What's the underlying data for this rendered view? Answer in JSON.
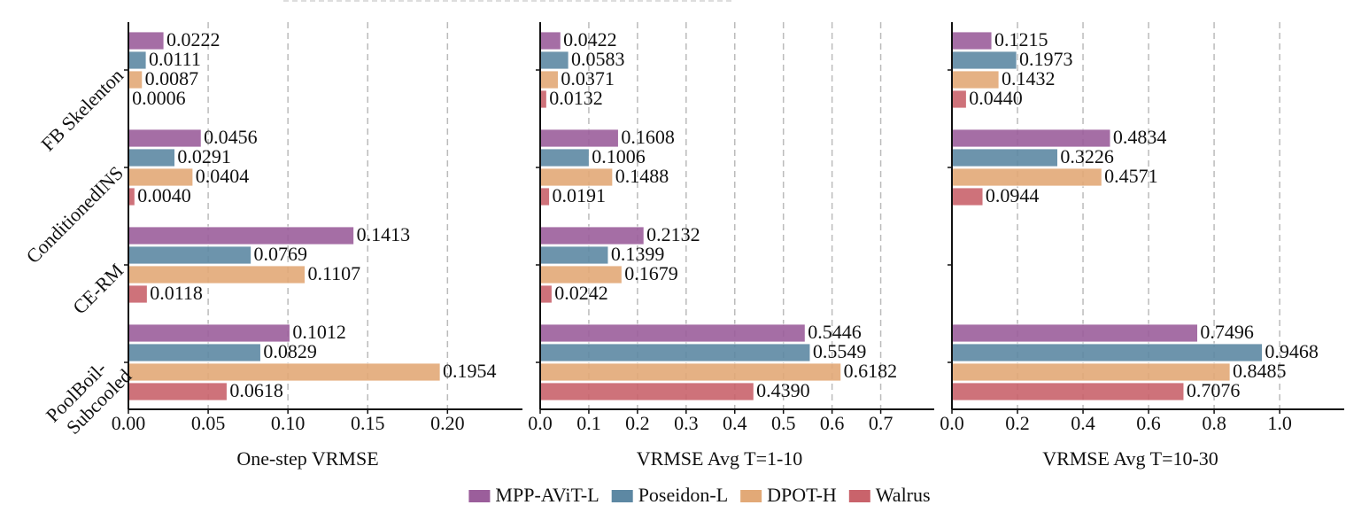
{
  "chart_data": [
    {
      "type": "bar",
      "orientation": "horizontal",
      "categories": [
        "FB Skelenton",
        "ConditionedINS",
        "CE-RM",
        "PoolBoil-\nSubcooled"
      ],
      "series": [
        {
          "name": "MPP-AViT-L",
          "color": "#9b5e9b",
          "values": [
            0.0222,
            0.0456,
            0.1413,
            0.1012
          ],
          "value_labels": [
            "0.0222",
            "0.0456",
            "0.1413",
            "0.1012"
          ]
        },
        {
          "name": "Poseidon-L",
          "color": "#5d88a3",
          "values": [
            0.0111,
            0.0291,
            0.0769,
            0.0829
          ],
          "value_labels": [
            "0.0111",
            "0.0291",
            "0.0769",
            "0.0829"
          ]
        },
        {
          "name": "DPOT-H",
          "color": "#e2a977",
          "values": [
            0.0087,
            0.0404,
            0.1107,
            0.1954
          ],
          "value_labels": [
            "0.0087",
            "0.0404",
            "0.1107",
            "0.1954"
          ]
        },
        {
          "name": "Walrus",
          "color": "#c9636b",
          "values": [
            0.0006,
            0.004,
            0.0118,
            0.0618
          ],
          "value_labels": [
            "0.0006",
            "0.0040",
            "0.0118",
            "0.0618"
          ]
        }
      ],
      "xlabel": "One-step VRMSE",
      "xlim": [
        0,
        0.247
      ],
      "xticks": [
        {
          "value": 0,
          "label": "0.00"
        },
        {
          "value": 0.05,
          "label": "0.05"
        },
        {
          "value": 0.1,
          "label": "0.10"
        },
        {
          "value": 0.15,
          "label": "0.15"
        },
        {
          "value": 0.2,
          "label": "0.20"
        }
      ],
      "grid": true
    },
    {
      "type": "bar",
      "orientation": "horizontal",
      "series": [
        {
          "values": [
            0.0422,
            0.1608,
            0.2132,
            0.5446
          ],
          "value_labels": [
            "0.0422",
            "0.1608",
            "0.2132",
            "0.5446"
          ]
        },
        {
          "values": [
            0.0583,
            0.1006,
            0.1399,
            0.5549
          ],
          "value_labels": [
            "0.0583",
            "0.1006",
            "0.1399",
            "0.5549"
          ]
        },
        {
          "values": [
            0.0371,
            0.1488,
            0.1679,
            0.6182
          ],
          "value_labels": [
            "0.0371",
            "0.1488",
            "0.1679",
            "0.6182"
          ]
        },
        {
          "values": [
            0.0132,
            0.0191,
            0.0242,
            0.439
          ],
          "value_labels": [
            "0.0132",
            "0.0191",
            "0.0242",
            "0.4390"
          ]
        }
      ],
      "xlabel": "VRMSE Avg T=1-10",
      "xlim": [
        0,
        0.81
      ],
      "xticks": [
        {
          "value": 0,
          "label": "0.0"
        },
        0.1,
        0.2,
        0.3,
        0.4,
        0.5,
        0.6,
        0.7
      ],
      "grid": true
    },
    {
      "type": "bar",
      "orientation": "horizontal",
      "series": [
        {
          "values": [
            0.1215,
            0.4834,
            null,
            0.7496
          ],
          "value_labels": [
            "0.1215",
            "0.4834",
            null,
            "0.7496"
          ]
        },
        {
          "values": [
            0.1973,
            0.3226,
            null,
            0.9468
          ],
          "value_labels": [
            "0.1973",
            "0.3226",
            null,
            "0.9468"
          ]
        },
        {
          "values": [
            0.1432,
            0.4571,
            null,
            0.8485
          ],
          "value_labels": [
            "0.1432",
            "0.4571",
            null,
            "0.8485"
          ]
        },
        {
          "values": [
            0.044,
            0.0944,
            null,
            0.7076
          ],
          "value_labels": [
            "0.0440",
            "0.0944",
            null,
            "0.7076"
          ]
        }
      ],
      "xlabel": "VRMSE Avg T=10-30",
      "xlim": [
        0,
        1.197
      ],
      "xticks": [
        {
          "value": 0,
          "label": "0.0"
        },
        0.2,
        0.4,
        0.6,
        0.8,
        {
          "value": 1,
          "label": "1.0"
        }
      ],
      "grid": true
    }
  ]
}
